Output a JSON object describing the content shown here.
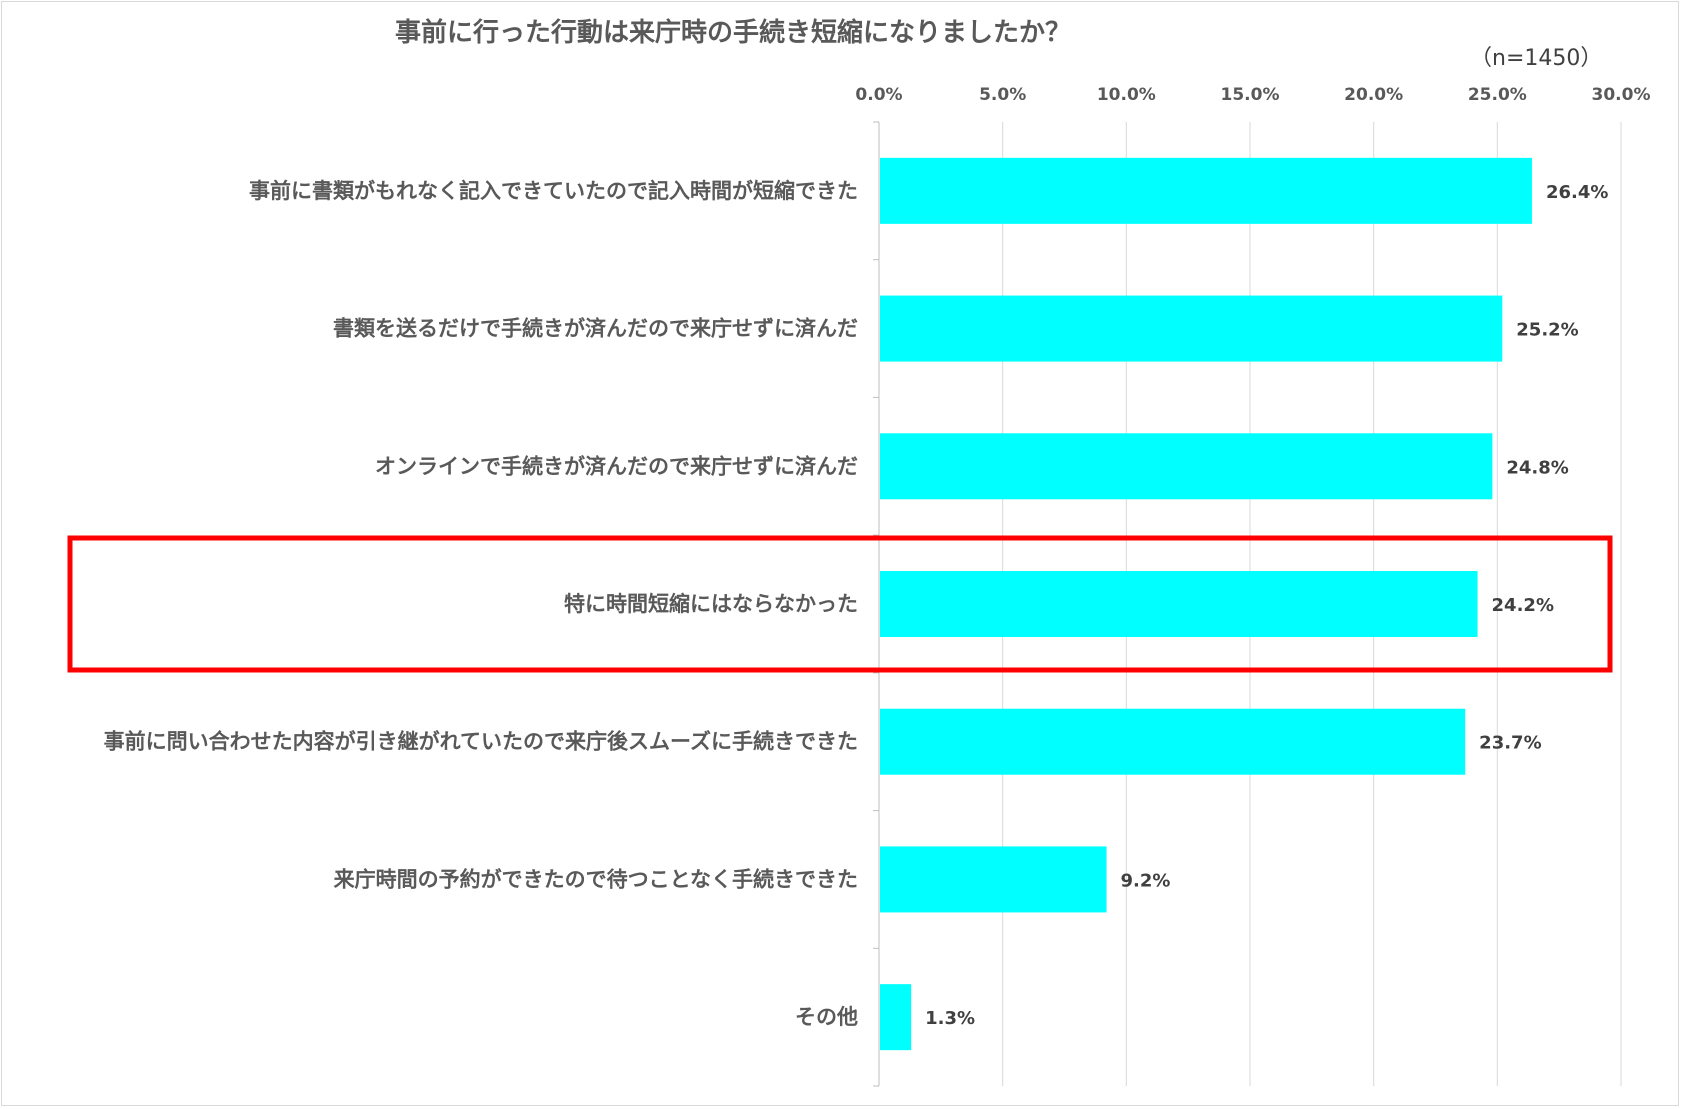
{
  "chart_data": {
    "type": "bar",
    "orientation": "horizontal",
    "title": "事前に行った行動は来庁時の手続き短縮になりましたか？",
    "sample_size": "（n=1450）",
    "x_ticks": [
      "0.0%",
      "5.0%",
      "10.0%",
      "15.0%",
      "20.0%",
      "25.0%",
      "30.0%"
    ],
    "xlim": [
      0,
      30
    ],
    "grid": "vertical",
    "bar_color": "#00FFFF",
    "highlight_color": "#FF0000",
    "highlight_index": 3,
    "categories": [
      "事前に書類がもれなく記入できていたので記入時間が短縮できた",
      "書類を送るだけで手続きが済んだので来庁せずに済んだ",
      "オンラインで手続きが済んだので来庁せずに済んだ",
      "特に時間短縮にはならなかった",
      "事前に問い合わせた内容が引き継がれていたので来庁後スムーズに手続きできた",
      "来庁時間の予約ができたので待つことなく手続きできた",
      "その他"
    ],
    "values": [
      26.4,
      25.2,
      24.8,
      24.2,
      23.7,
      9.2,
      1.3
    ],
    "value_labels": [
      "26.4%",
      "25.2%",
      "24.8%",
      "24.2%",
      "23.7%",
      "9.2%",
      "1.3%"
    ]
  }
}
